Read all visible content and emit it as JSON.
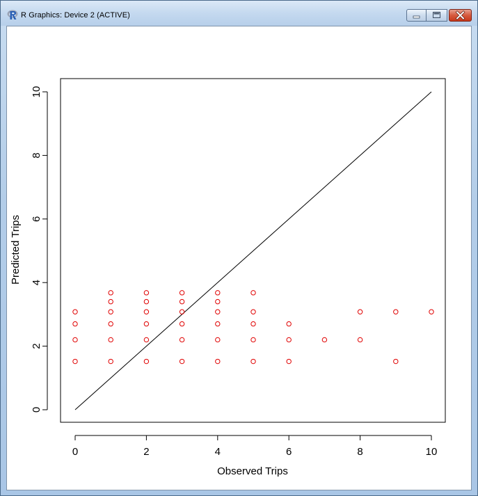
{
  "window": {
    "title": "R Graphics: Device 2 (ACTIVE)",
    "app_icon": "r-logo-icon",
    "controls": [
      "minimize-icon",
      "maximize-icon",
      "close-icon"
    ]
  },
  "chart_data": {
    "type": "scatter",
    "xlabel": "Observed Trips",
    "ylabel": "Predicted Trips",
    "xlim": [
      0,
      10
    ],
    "ylim": [
      0,
      10
    ],
    "xticks": [
      "0",
      "2",
      "4",
      "6",
      "8",
      "10"
    ],
    "yticks": [
      "0",
      "2",
      "4",
      "6",
      "8",
      "10"
    ],
    "grid": false,
    "point_color": "#e00000",
    "line_color": "#000000",
    "reference_line": {
      "from": [
        0,
        0
      ],
      "to": [
        10,
        10
      ]
    },
    "points": [
      [
        0,
        1.52
      ],
      [
        0,
        2.2
      ],
      [
        0,
        2.7
      ],
      [
        0,
        3.08
      ],
      [
        1,
        1.52
      ],
      [
        1,
        2.2
      ],
      [
        1,
        2.7
      ],
      [
        1,
        3.08
      ],
      [
        1,
        3.4
      ],
      [
        1,
        3.68
      ],
      [
        2,
        1.52
      ],
      [
        2,
        2.2
      ],
      [
        2,
        2.7
      ],
      [
        2,
        3.08
      ],
      [
        2,
        3.4
      ],
      [
        2,
        3.68
      ],
      [
        3,
        1.52
      ],
      [
        3,
        2.2
      ],
      [
        3,
        2.7
      ],
      [
        3,
        3.08
      ],
      [
        3,
        3.4
      ],
      [
        3,
        3.68
      ],
      [
        4,
        1.52
      ],
      [
        4,
        2.2
      ],
      [
        4,
        2.7
      ],
      [
        4,
        3.08
      ],
      [
        4,
        3.4
      ],
      [
        4,
        3.68
      ],
      [
        5,
        1.52
      ],
      [
        5,
        2.2
      ],
      [
        5,
        2.7
      ],
      [
        5,
        3.08
      ],
      [
        5,
        3.68
      ],
      [
        6,
        1.52
      ],
      [
        6,
        2.2
      ],
      [
        6,
        2.7
      ],
      [
        7,
        2.2
      ],
      [
        8,
        2.2
      ],
      [
        8,
        3.08
      ],
      [
        9,
        1.52
      ],
      [
        9,
        3.08
      ],
      [
        10,
        3.08
      ]
    ]
  }
}
